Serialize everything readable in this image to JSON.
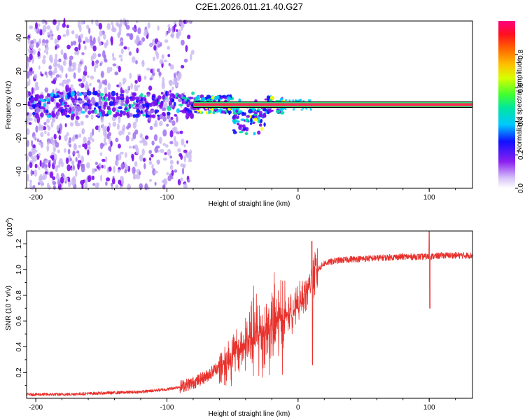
{
  "title": "C2E1.2026.011.21.40.G27",
  "colors": {
    "snr_line": "#e8312c",
    "carrier": "#ff2a55",
    "background": "#ffffff",
    "axis": "#000000"
  },
  "chart_data": [
    {
      "type": "heatmap",
      "title": "C2E1.2026.011.21.40.G27",
      "xlabel": "Height of straight line (km)",
      "ylabel": "Frequency (Hz)",
      "xlim": [
        -207,
        133
      ],
      "ylim": [
        -50,
        50
      ],
      "x_ticks": [
        -200,
        -100,
        0,
        100
      ],
      "x_tick_labels": [
        "-200",
        "-100",
        "0",
        "100"
      ],
      "y_ticks": [
        -40,
        -20,
        0,
        20,
        40
      ],
      "y_tick_labels": [
        "-40",
        "-20",
        "0",
        "20",
        "40"
      ],
      "colormap": [
        "#ffffff",
        "#c9b6f2",
        "#a070f0",
        "#7a10f0",
        "#1010ff",
        "#00c8ff",
        "#00e0a0",
        "#40ff40",
        "#ffff00",
        "#ff8000",
        "#ff0040"
      ],
      "carrier_line": {
        "frequency_hz": 0,
        "x_range": [
          -80,
          133
        ]
      },
      "colorbar": {
        "label": "Normalized spectral amplitude",
        "range": [
          0,
          1
        ],
        "ticks": [
          0.0,
          0.2,
          0.4,
          0.6,
          0.8
        ],
        "tick_labels": [
          "0.0",
          "0.2",
          "0.4",
          "0.6",
          "0.8"
        ]
      }
    },
    {
      "type": "line",
      "xlabel": "Height of straight line (km)",
      "ylabel": "SNR (10 * v/v)",
      "exponent_label": "(x10",
      "exponent_value": "4",
      "exponent_close": ")",
      "xlim": [
        -207,
        133
      ],
      "ylim": [
        0,
        1.3
      ],
      "x_ticks": [
        -200,
        -100,
        0,
        100
      ],
      "x_tick_labels": [
        "-200",
        "-100",
        "0",
        "100"
      ],
      "y_ticks": [
        0.2,
        0.4,
        0.6,
        0.8,
        1.0,
        1.2
      ],
      "y_tick_labels": [
        "0.2",
        "0.4",
        "0.6",
        "0.8",
        "1.0",
        "1.2"
      ],
      "series": [
        {
          "name": "SNR",
          "x": [
            -207,
            -180,
            -150,
            -120,
            -100,
            -90,
            -80,
            -70,
            -60,
            -50,
            -45,
            -40,
            -35,
            -30,
            -25,
            -20,
            -15,
            -10,
            -5,
            0,
            5,
            10,
            15,
            20,
            25,
            30,
            40,
            60,
            80,
            100,
            110,
            120,
            133
          ],
          "y": [
            0.03,
            0.03,
            0.04,
            0.05,
            0.07,
            0.09,
            0.12,
            0.17,
            0.25,
            0.33,
            0.38,
            0.43,
            0.46,
            0.5,
            0.53,
            0.57,
            0.6,
            0.63,
            0.67,
            0.72,
            0.8,
            0.9,
            1.0,
            1.05,
            1.06,
            1.07,
            1.08,
            1.09,
            1.1,
            1.1,
            1.11,
            1.11,
            1.11
          ]
        }
      ]
    }
  ]
}
